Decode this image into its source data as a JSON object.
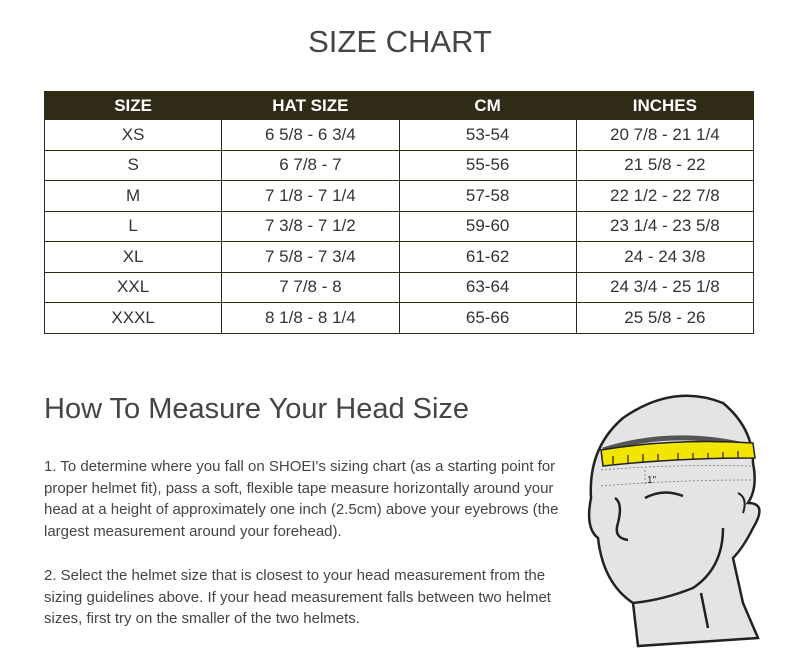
{
  "title": "SIZE CHART",
  "table": {
    "headers": [
      "SIZE",
      "HAT SIZE",
      "CM",
      "INCHES"
    ],
    "rows": [
      [
        "XS",
        "6 5/8 - 6 3/4",
        "53-54",
        "20 7/8 - 21 1/4"
      ],
      [
        "S",
        "6 7/8 - 7",
        "55-56",
        "21 5/8 - 22"
      ],
      [
        "M",
        "7 1/8 - 7 1/4",
        "57-58",
        "22 1/2 - 22 7/8"
      ],
      [
        "L",
        "7 3/8 - 7 1/2",
        "59-60",
        "23 1/4 - 23 5/8"
      ],
      [
        "XL",
        "7 5/8 - 7 3/4",
        "61-62",
        "24 - 24 3/8"
      ],
      [
        "XXL",
        "7 7/8 - 8",
        "63-64",
        "24 3/4 - 25 1/8"
      ],
      [
        "XXXL",
        "8 1/8 - 8 1/4",
        "65-66",
        "25 5/8 - 26"
      ]
    ],
    "header_color": "#2f2b16"
  },
  "howto": {
    "heading": "How To Measure Your Head Size",
    "paragraphs": [
      "1. To determine where you fall on SHOEI's sizing chart (as a starting point for proper helmet fit), pass a soft, flexible tape measure horizontally around your head at a height of approximately one inch (2.5cm) above your eyebrows (the largest measurement around your forehead).",
      "2. Select the helmet size that is closest to your head measurement from the sizing guidelines above. If your head measurement falls between two helmet sizes, first try on the smaller of the two helmets."
    ],
    "illustration_label": "1\"",
    "tape_color": "#f2e600"
  }
}
